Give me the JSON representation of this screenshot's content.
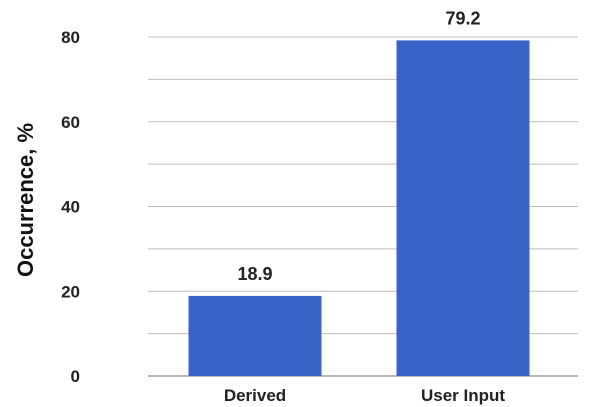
{
  "chart_data": {
    "type": "bar",
    "categories": [
      "Derived",
      "User Input"
    ],
    "values": [
      18.9,
      79.2
    ],
    "data_labels": [
      "18.9",
      "79.2"
    ],
    "title": "",
    "xlabel": "",
    "ylabel": "Occurrence, %",
    "ylim": [
      0,
      80
    ],
    "yticks": [
      0,
      20,
      40,
      60,
      80
    ],
    "minor_gridlines_at": [
      10,
      30,
      50,
      70
    ],
    "grid": true,
    "legend": "none",
    "colors": {
      "bar": "#3a63c9",
      "gridline": "#bdbdbd",
      "text": "#222222"
    }
  }
}
